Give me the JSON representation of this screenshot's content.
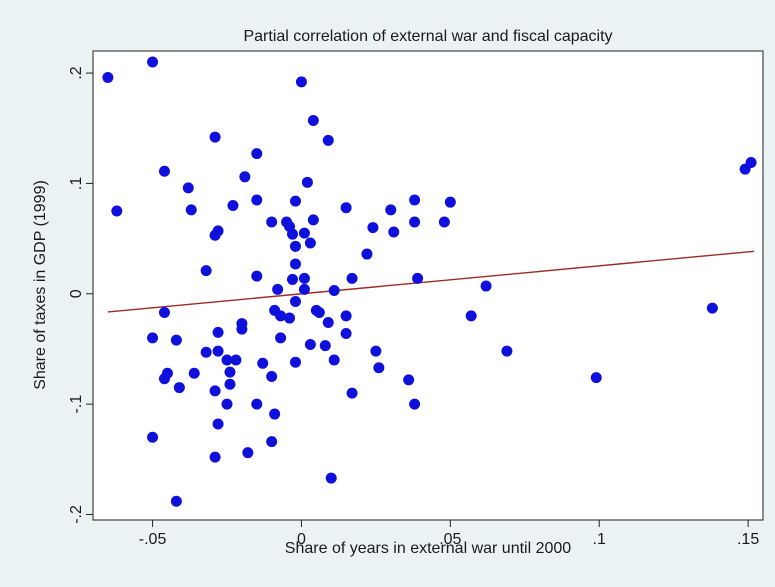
{
  "chart_data": {
    "type": "scatter",
    "title": "Partial correlation of external war and fiscal capacity",
    "xlabel": "Share of years in external war until 2000",
    "ylabel": "Share of taxes in GDP (1999)",
    "xlim": [
      -0.07,
      0.155
    ],
    "ylim": [
      -0.205,
      0.22
    ],
    "x_ticks": [
      -0.05,
      0,
      0.05,
      0.1,
      0.15
    ],
    "x_tick_labels": [
      "-.05",
      "0",
      ".05",
      ".1",
      ".15"
    ],
    "y_ticks": [
      -0.2,
      -0.1,
      0,
      0.1,
      0.2
    ],
    "y_tick_labels": [
      "-.2",
      "-.1",
      "0",
      ".1",
      ".2"
    ],
    "grid": false,
    "legend": "none",
    "colors": {
      "background": "#eaf2f3",
      "plot_area": "#ffffff",
      "points": "#1010dd",
      "fit_line": "#9c2b27"
    },
    "fit_line": {
      "x": [
        -0.065,
        0.152
      ],
      "y": [
        -0.0165,
        0.0385
      ]
    },
    "points": [
      [
        -0.065,
        0.196
      ],
      [
        -0.062,
        0.075
      ],
      [
        -0.05,
        0.21
      ],
      [
        -0.05,
        -0.04
      ],
      [
        -0.05,
        -0.13
      ],
      [
        -0.046,
        0.111
      ],
      [
        -0.046,
        -0.017
      ],
      [
        -0.046,
        -0.077
      ],
      [
        -0.045,
        -0.072
      ],
      [
        -0.042,
        -0.042
      ],
      [
        -0.042,
        -0.188
      ],
      [
        -0.041,
        -0.085
      ],
      [
        -0.038,
        0.096
      ],
      [
        -0.037,
        0.076
      ],
      [
        -0.036,
        -0.072
      ],
      [
        -0.032,
        0.021
      ],
      [
        -0.032,
        -0.053
      ],
      [
        -0.029,
        0.053
      ],
      [
        -0.029,
        0.142
      ],
      [
        -0.029,
        -0.088
      ],
      [
        -0.029,
        -0.148
      ],
      [
        -0.028,
        0.057
      ],
      [
        -0.028,
        -0.035
      ],
      [
        -0.028,
        -0.052
      ],
      [
        -0.028,
        -0.118
      ],
      [
        -0.025,
        -0.06
      ],
      [
        -0.025,
        -0.1
      ],
      [
        -0.024,
        -0.071
      ],
      [
        -0.024,
        -0.082
      ],
      [
        -0.023,
        0.08
      ],
      [
        -0.022,
        -0.06
      ],
      [
        -0.02,
        -0.032
      ],
      [
        -0.02,
        -0.027
      ],
      [
        -0.019,
        0.106
      ],
      [
        -0.018,
        -0.144
      ],
      [
        -0.015,
        0.127
      ],
      [
        -0.015,
        0.085
      ],
      [
        -0.015,
        0.016
      ],
      [
        -0.015,
        -0.1
      ],
      [
        -0.013,
        -0.063
      ],
      [
        -0.01,
        0.065
      ],
      [
        -0.01,
        -0.075
      ],
      [
        -0.01,
        -0.134
      ],
      [
        -0.009,
        -0.015
      ],
      [
        -0.009,
        -0.109
      ],
      [
        -0.008,
        0.004
      ],
      [
        -0.007,
        -0.02
      ],
      [
        -0.007,
        -0.04
      ],
      [
        -0.005,
        0.065
      ],
      [
        -0.004,
        0.061
      ],
      [
        -0.004,
        -0.022
      ],
      [
        -0.003,
        0.054
      ],
      [
        -0.003,
        0.013
      ],
      [
        -0.002,
        0.084
      ],
      [
        -0.002,
        0.043
      ],
      [
        -0.002,
        0.027
      ],
      [
        -0.002,
        -0.007
      ],
      [
        -0.002,
        -0.062
      ],
      [
        0.0,
        0.192
      ],
      [
        0.001,
        0.055
      ],
      [
        0.001,
        0.014
      ],
      [
        0.001,
        0.004
      ],
      [
        0.002,
        0.101
      ],
      [
        0.003,
        0.046
      ],
      [
        0.003,
        -0.046
      ],
      [
        0.004,
        0.157
      ],
      [
        0.004,
        0.067
      ],
      [
        0.005,
        -0.015
      ],
      [
        0.006,
        -0.017
      ],
      [
        0.008,
        -0.047
      ],
      [
        0.009,
        0.139
      ],
      [
        0.009,
        -0.026
      ],
      [
        0.01,
        -0.167
      ],
      [
        0.011,
        0.003
      ],
      [
        0.011,
        -0.06
      ],
      [
        0.015,
        0.078
      ],
      [
        0.015,
        -0.02
      ],
      [
        0.015,
        -0.036
      ],
      [
        0.017,
        0.014
      ],
      [
        0.017,
        -0.09
      ],
      [
        0.022,
        0.036
      ],
      [
        0.024,
        0.06
      ],
      [
        0.025,
        -0.052
      ],
      [
        0.026,
        -0.067
      ],
      [
        0.03,
        0.076
      ],
      [
        0.031,
        0.056
      ],
      [
        0.036,
        -0.078
      ],
      [
        0.038,
        0.085
      ],
      [
        0.038,
        0.065
      ],
      [
        0.038,
        -0.1
      ],
      [
        0.039,
        0.014
      ],
      [
        0.048,
        0.065
      ],
      [
        0.05,
        0.083
      ],
      [
        0.057,
        -0.02
      ],
      [
        0.062,
        0.007
      ],
      [
        0.069,
        -0.052
      ],
      [
        0.099,
        -0.076
      ],
      [
        0.138,
        -0.013
      ],
      [
        0.149,
        0.113
      ],
      [
        0.151,
        0.119
      ]
    ]
  }
}
